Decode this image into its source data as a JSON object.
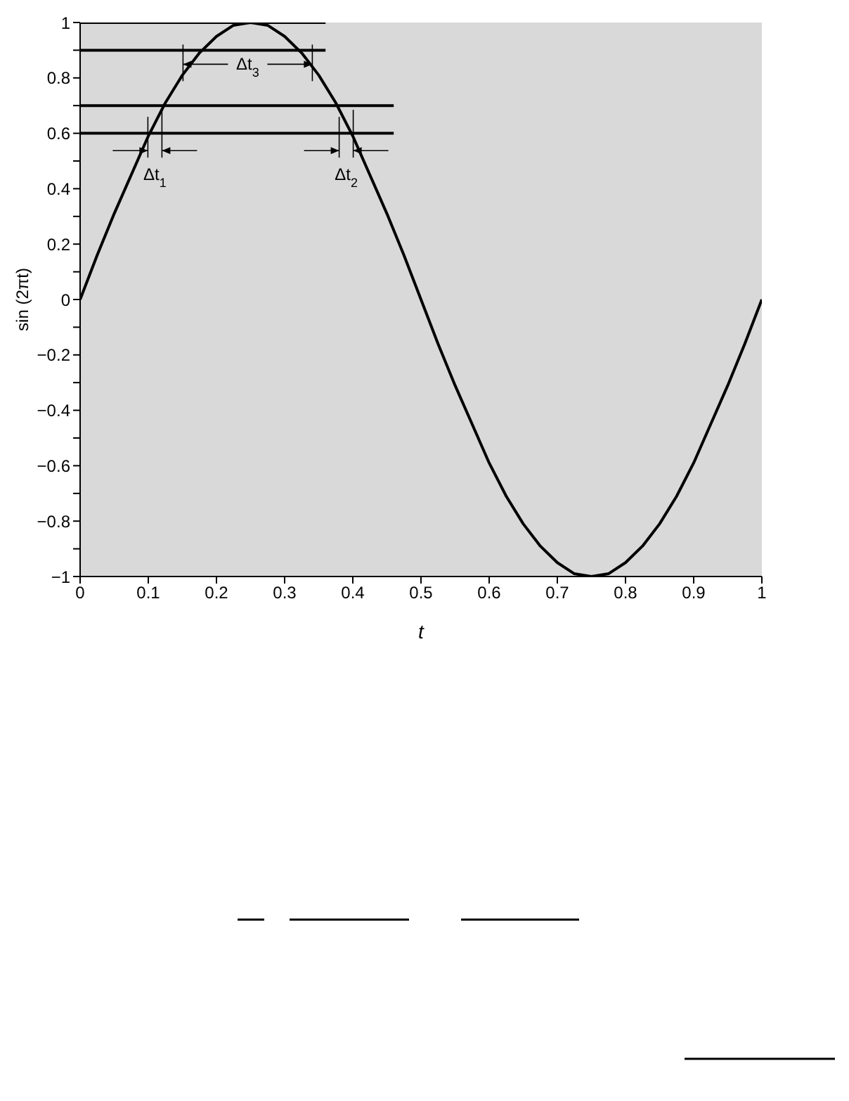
{
  "chart_data": {
    "type": "line",
    "xlabel": "t",
    "ylabel": "sin (2πt)",
    "xlim": [
      0,
      1
    ],
    "ylim": [
      -1,
      1
    ],
    "xticks": [
      0,
      0.1,
      0.2,
      0.3,
      0.4,
      0.5,
      0.6,
      0.7,
      0.8,
      0.9,
      1
    ],
    "yticks": [
      -1,
      {
        "value": -0.9,
        "label": null
      },
      -0.8,
      {
        "value": -0.7,
        "label": null
      },
      -0.6,
      {
        "value": -0.5,
        "label": null
      },
      -0.4,
      {
        "value": -0.3,
        "label": null
      },
      -0.2,
      {
        "value": -0.1,
        "label": null
      },
      0,
      {
        "value": 0.1,
        "label": null
      },
      0.2,
      {
        "value": 0.3,
        "label": null
      },
      0.4,
      {
        "value": 0.5,
        "label": null
      },
      0.6,
      {
        "value": 0.7,
        "label": null
      },
      0.8,
      {
        "value": 0.9,
        "label": null
      },
      1
    ],
    "grid": false,
    "marker": "none",
    "line_style": "solid",
    "series": [
      {
        "color": "#000000",
        "x": [
          0,
          0.025,
          0.05,
          0.075,
          0.1,
          0.125,
          0.15,
          0.175,
          0.2,
          0.225,
          0.25,
          0.275,
          0.3,
          0.325,
          0.35,
          0.375,
          0.4,
          0.425,
          0.45,
          0.475,
          0.5,
          0.525,
          0.55,
          0.575,
          0.6,
          0.625,
          0.65,
          0.675,
          0.7,
          0.725,
          0.75,
          0.775,
          0.8,
          0.825,
          0.85,
          0.875,
          0.9,
          0.925,
          0.95,
          0.975,
          1
        ],
        "values": [
          0,
          0.16,
          0.31,
          0.45,
          0.59,
          0.71,
          0.81,
          0.89,
          0.95,
          0.99,
          1,
          0.99,
          0.95,
          0.89,
          0.81,
          0.71,
          0.59,
          0.45,
          0.31,
          0.16,
          0,
          -0.16,
          -0.31,
          -0.45,
          -0.59,
          -0.71,
          -0.81,
          -0.89,
          -0.95,
          -0.99,
          -1,
          -0.99,
          -0.95,
          -0.89,
          -0.81,
          -0.71,
          -0.59,
          -0.45,
          -0.31,
          -0.16,
          0
        ]
      },
      {
        "color": "#000000",
        "x": [
          0,
          0.36
        ],
        "values": [
          1,
          1
        ]
      },
      {
        "color": "#000000",
        "x": [
          0,
          0.36
        ],
        "values": [
          0.9,
          0.9
        ]
      },
      {
        "color": "#000000",
        "x": [
          0,
          0.46
        ],
        "values": [
          0.7,
          0.7
        ]
      },
      {
        "color": "#000000",
        "x": [
          0,
          0.46
        ],
        "values": [
          0.6,
          0.6
        ]
      }
    ],
    "annotations": [
      {
        "text": "Δt$_{1}$",
        "x": 0.12,
        "y": 0.7
      },
      {
        "text": "Δt$_{2}$",
        "x": 0.38,
        "y": 0.7
      },
      {
        "text": "Δt$_{3}$",
        "x": 0.32,
        "y": 0.9
      }
    ]
  }
}
